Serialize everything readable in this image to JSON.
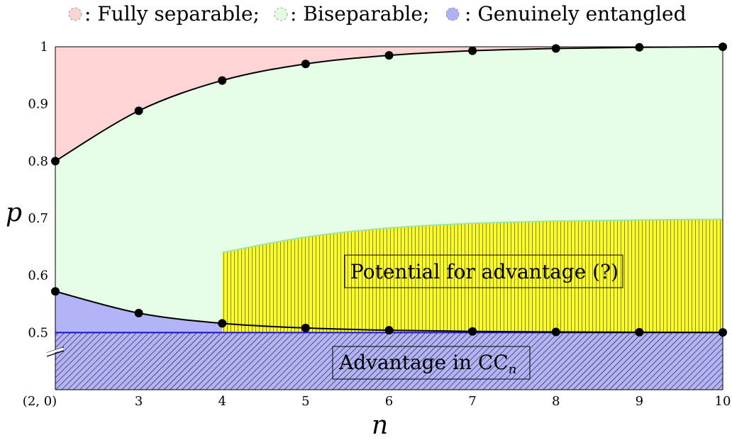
{
  "legend": [
    {
      "label": ": Fully separable;",
      "color": "#fbd3d3"
    },
    {
      "label": ": Biseparable;",
      "color": "#e3fbe3"
    },
    {
      "label": ": Genuinely entangled",
      "color": "#b0b0f5"
    }
  ],
  "colors": {
    "fully_separable": "#ffd4d4",
    "biseparable": "#e6fde6",
    "genuinely_entangled": "#b3b3f7",
    "advantage_fill": "#b3b3f7",
    "potential_fill": "#fbfb2c",
    "potential_edge": "#9ee89e",
    "hatch": "#000000"
  },
  "chart_data": {
    "type": "area",
    "xlabel": "n",
    "ylabel": "p",
    "x": [
      2,
      3,
      4,
      5,
      6,
      7,
      8,
      9,
      10
    ],
    "x_tick_labels": [
      "(2, 0)",
      "3",
      "4",
      "5",
      "6",
      "7",
      "8",
      "9",
      "10"
    ],
    "y_ticks": [
      0.5,
      0.6,
      0.7,
      0.8,
      0.9,
      1
    ],
    "y_tick_labels": [
      "0.5",
      "0.6",
      "0.7",
      "0.8",
      "0.9",
      "1"
    ],
    "ylim": [
      0.4,
      1.0
    ],
    "axis_break": true,
    "series": [
      {
        "values": [
          0.8,
          0.888,
          0.941,
          0.97,
          0.985,
          0.993,
          0.997,
          0.999,
          1.0
        ]
      },
      {
        "values": [
          0.572,
          0.534,
          0.516,
          0.508,
          0.504,
          0.502,
          0.501,
          0.5005,
          0.5002
        ]
      }
    ],
    "advantage_level": 0.5,
    "potential_region": {
      "x": [
        4,
        5,
        6,
        7,
        8,
        9,
        10
      ],
      "upper": [
        0.64,
        0.667,
        0.683,
        0.691,
        0.695,
        0.697,
        0.698
      ],
      "lower": 0.5
    },
    "annotations": {
      "potential": "Potential for advantage (?)",
      "advantage_main": "Advantage in CC",
      "advantage_sub": "n"
    }
  }
}
